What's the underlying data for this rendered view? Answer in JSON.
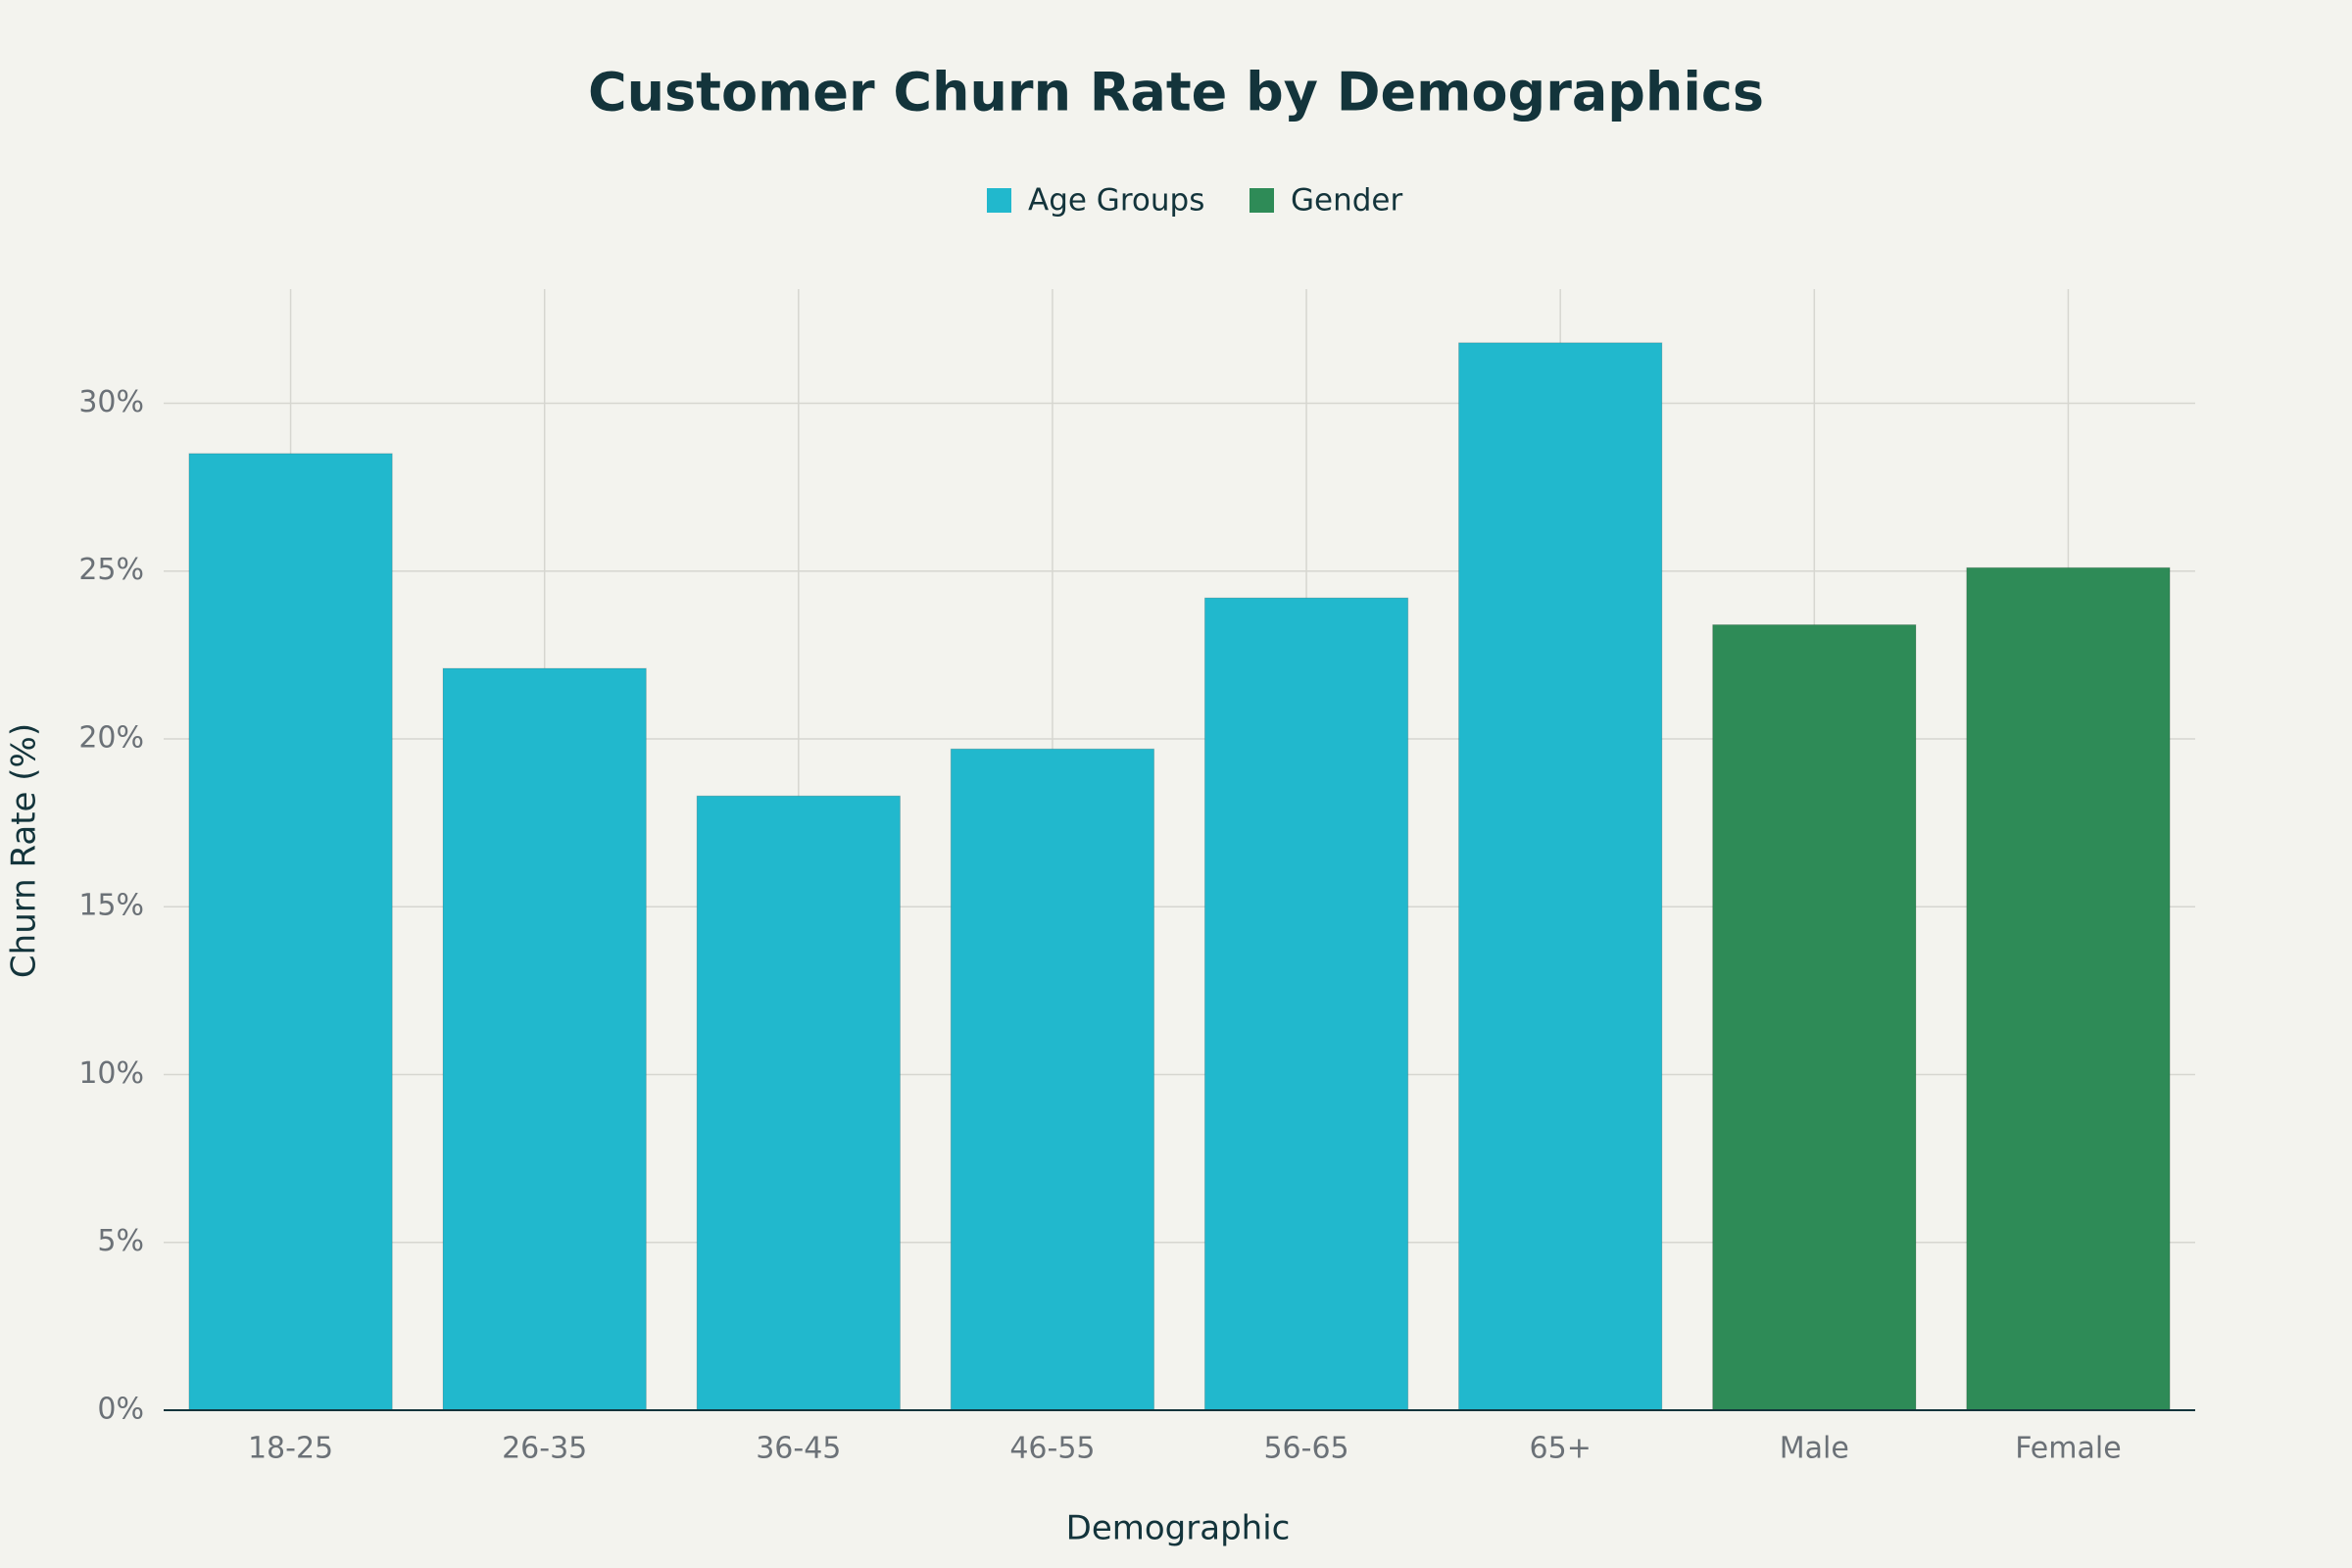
{
  "chart_data": {
    "type": "bar",
    "title": "Customer Churn Rate by Demographics",
    "x_label": "Demographic",
    "y_label": "Churn Rate (%)",
    "categories": [
      "18-25",
      "26-35",
      "36-45",
      "46-55",
      "56-65",
      "65+",
      "Male",
      "Female"
    ],
    "series": [
      {
        "name": "Age Groups",
        "color": "#21b8cd",
        "values": [
          28.5,
          22.1,
          18.3,
          19.7,
          24.2,
          31.8,
          null,
          null
        ]
      },
      {
        "name": "Gender",
        "color": "#2e8b57",
        "values": [
          null,
          null,
          null,
          null,
          null,
          null,
          23.4,
          25.1
        ]
      }
    ],
    "ylim": [
      0,
      33.4
    ],
    "yticks": [
      {
        "value": 0,
        "label": "0%"
      },
      {
        "value": 5,
        "label": "5%"
      },
      {
        "value": 10,
        "label": "10%"
      },
      {
        "value": 15,
        "label": "15%"
      },
      {
        "value": 20,
        "label": "20%"
      },
      {
        "value": 25,
        "label": "25%"
      },
      {
        "value": 30,
        "label": "30%"
      }
    ],
    "grid": true,
    "legend": "top"
  }
}
